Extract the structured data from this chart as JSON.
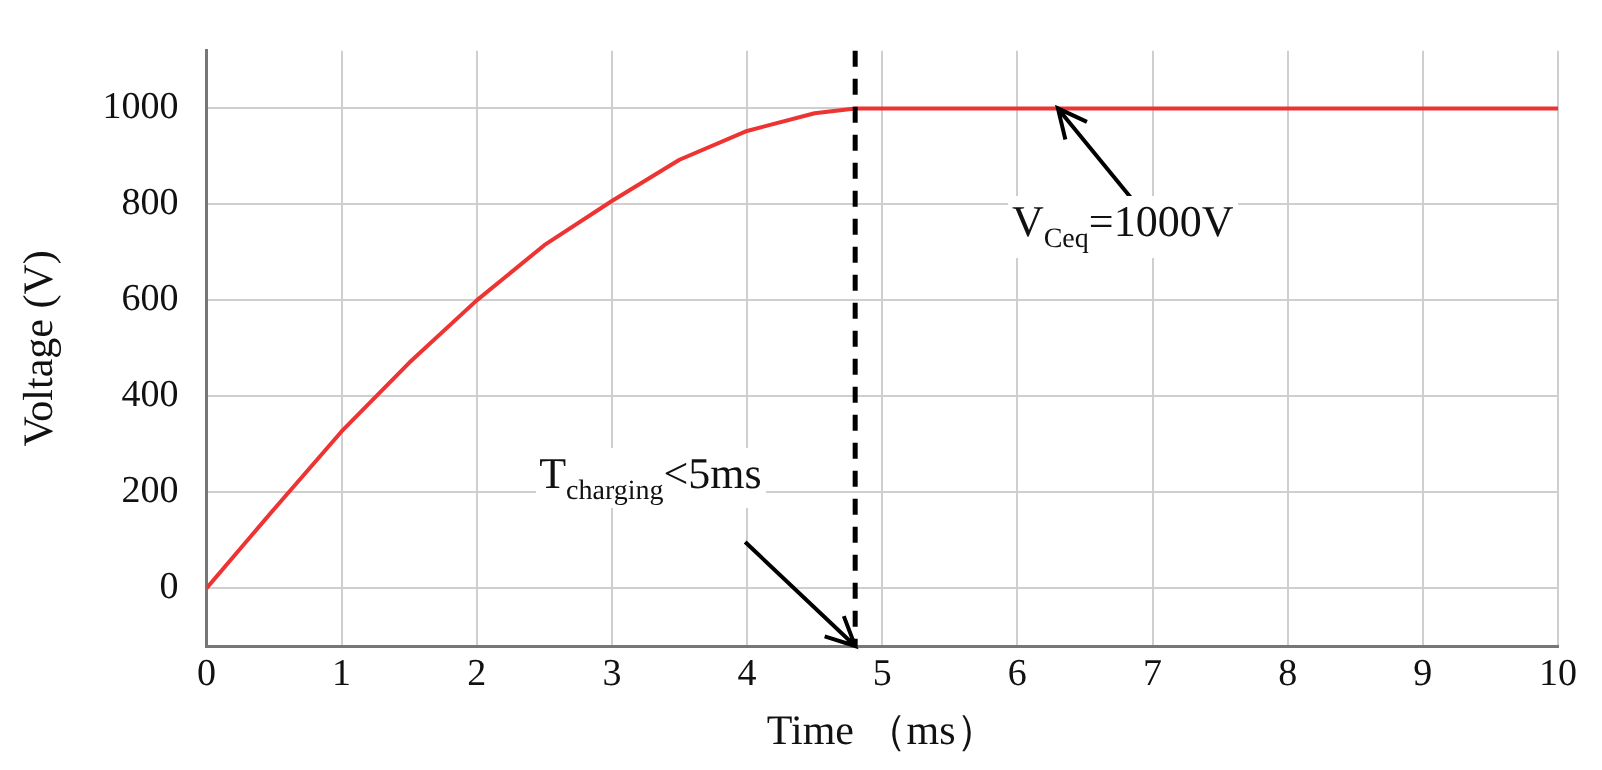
{
  "chart_data": {
    "type": "line",
    "xlabel": "Time （ms）",
    "ylabel": "Voltage (V)",
    "x": [
      0,
      0.5,
      1,
      1.5,
      2,
      2.5,
      3,
      3.5,
      4,
      4.5,
      4.8,
      5,
      6,
      7,
      8,
      9,
      10
    ],
    "series": [
      {
        "color": "#ee3333",
        "values": [
          0,
          165,
          327,
          470,
          600,
          715,
          807,
          893,
          953,
          990,
          1000,
          1000,
          1000,
          1000,
          1000,
          1000,
          1000
        ]
      }
    ],
    "xlim": [
      0,
      10
    ],
    "xticks": [
      0,
      1,
      2,
      3,
      4,
      5,
      6,
      7,
      8,
      9,
      10
    ],
    "ylim": [
      -120,
      1120
    ],
    "yticks": [
      0,
      200,
      400,
      600,
      800,
      1000
    ],
    "grid": true,
    "legend": false,
    "marker": "none",
    "line_style": "solid",
    "ref_lines": [
      {
        "axis": "x",
        "value": 4.8,
        "color": "#000000",
        "line_style": "dashed"
      }
    ],
    "annotations": [
      {
        "text": "T$_{charging}$<5ms",
        "x": 4.8,
        "y": -120
      },
      {
        "text": "V$_{Ceq}$=1000V",
        "x": 6.3,
        "y": 1000
      }
    ]
  }
}
